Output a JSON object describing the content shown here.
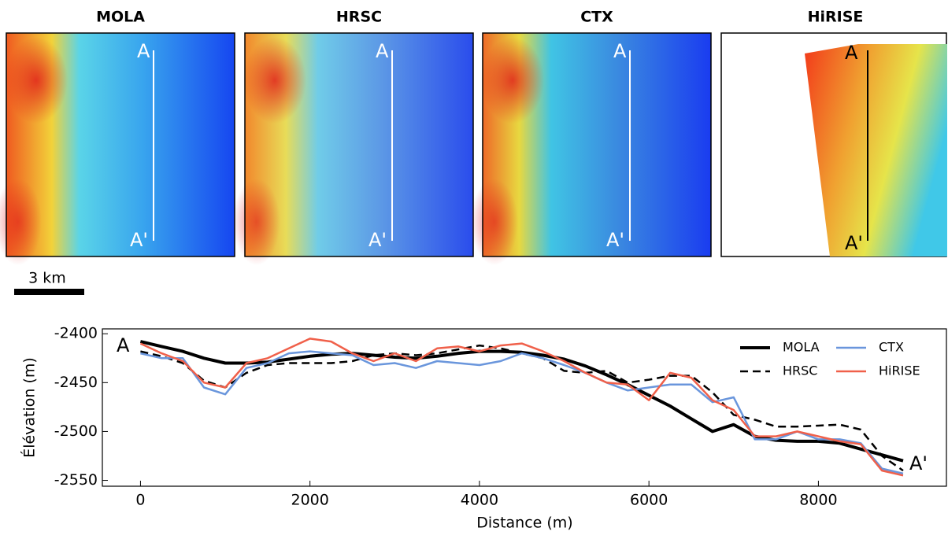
{
  "panels": [
    {
      "title": "MOLA",
      "top_label": "A",
      "bottom_label": "A'"
    },
    {
      "title": "HRSC",
      "top_label": "A",
      "bottom_label": "A'"
    },
    {
      "title": "CTX",
      "top_label": "A",
      "bottom_label": "A'"
    },
    {
      "title": "HiRISE",
      "top_label": "A",
      "bottom_label": "A'"
    }
  ],
  "scale_bar": "3 km",
  "chart_data": {
    "type": "line",
    "x_label": "Distance (m)",
    "y_label": "Élévation (m)",
    "annotations": [
      "A",
      "A'"
    ],
    "x": [
      0,
      250,
      500,
      750,
      1000,
      1250,
      1500,
      1750,
      2000,
      2250,
      2500,
      2750,
      3000,
      3250,
      3500,
      3750,
      4000,
      4250,
      4500,
      4750,
      5000,
      5250,
      5500,
      5750,
      6000,
      6250,
      6500,
      6750,
      7000,
      7250,
      7500,
      7750,
      8000,
      8250,
      8500,
      8750,
      9000
    ],
    "series": [
      {
        "name": "MOLA",
        "color": "#000000",
        "dash": false,
        "width": 4,
        "values": [
          -2408,
          -2413,
          -2418,
          -2425,
          -2430,
          -2430,
          -2429,
          -2426,
          -2423,
          -2421,
          -2420,
          -2422,
          -2424,
          -2425,
          -2423,
          -2420,
          -2418,
          -2418,
          -2419,
          -2422,
          -2426,
          -2433,
          -2442,
          -2452,
          -2463,
          -2474,
          -2487,
          -2500,
          -2493,
          -2505,
          -2509,
          -2510,
          -2510,
          -2512,
          -2518,
          -2524,
          -2530
        ]
      },
      {
        "name": "HRSC",
        "color": "#000000",
        "dash": true,
        "width": 2.5,
        "values": [
          -2418,
          -2423,
          -2430,
          -2448,
          -2455,
          -2440,
          -2432,
          -2430,
          -2430,
          -2430,
          -2428,
          -2422,
          -2420,
          -2422,
          -2420,
          -2416,
          -2412,
          -2415,
          -2420,
          -2425,
          -2438,
          -2440,
          -2438,
          -2450,
          -2447,
          -2443,
          -2443,
          -2460,
          -2483,
          -2488,
          -2495,
          -2495,
          -2494,
          -2493,
          -2498,
          -2525,
          -2540
        ]
      },
      {
        "name": "CTX",
        "color": "#6a96dc",
        "dash": false,
        "width": 2.5,
        "values": [
          -2420,
          -2425,
          -2425,
          -2455,
          -2462,
          -2435,
          -2430,
          -2420,
          -2418,
          -2420,
          -2422,
          -2432,
          -2430,
          -2435,
          -2428,
          -2430,
          -2432,
          -2428,
          -2420,
          -2425,
          -2432,
          -2440,
          -2450,
          -2458,
          -2455,
          -2452,
          -2452,
          -2470,
          -2465,
          -2508,
          -2508,
          -2500,
          -2508,
          -2508,
          -2512,
          -2538,
          -2543
        ]
      },
      {
        "name": "HiRISE",
        "color": "#f0604a",
        "dash": false,
        "width": 2.5,
        "values": [
          -2410,
          -2420,
          -2428,
          -2450,
          -2455,
          -2430,
          -2425,
          -2415,
          -2405,
          -2408,
          -2420,
          -2428,
          -2420,
          -2428,
          -2415,
          -2413,
          -2418,
          -2412,
          -2410,
          -2418,
          -2428,
          -2440,
          -2450,
          -2452,
          -2468,
          -2440,
          -2445,
          -2468,
          -2478,
          -2505,
          -2505,
          -2500,
          -2505,
          -2510,
          -2513,
          -2540,
          -2545
        ]
      }
    ],
    "xlim": [
      -450,
      9520
    ],
    "ylim": [
      -2556,
      -2395
    ],
    "xticks": [
      0,
      2000,
      4000,
      6000,
      8000
    ],
    "yticks": [
      -2400,
      -2450,
      -2500,
      -2550
    ],
    "legend": "upper right"
  }
}
